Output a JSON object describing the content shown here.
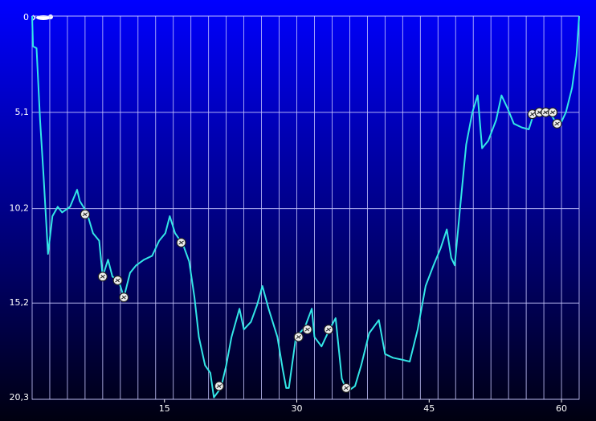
{
  "chart_data": {
    "type": "line",
    "xlim": [
      0,
      62
    ],
    "ylim": [
      0,
      20.3
    ],
    "y_inverted": true,
    "xticks": [
      15,
      30,
      45,
      60
    ],
    "yticks": [
      0,
      {
        "value": 5.1,
        "label": "5,1"
      },
      {
        "value": 10.2,
        "label": "10,2"
      },
      {
        "value": 15.2,
        "label": "15,2"
      },
      {
        "value": 20.3,
        "label": "20,3"
      }
    ],
    "x_grid": [
      2,
      4,
      6,
      8,
      10,
      12,
      14,
      16,
      18,
      20,
      22,
      24,
      26,
      28,
      30,
      32,
      34,
      36,
      38,
      40,
      42,
      44,
      46,
      48,
      50,
      52,
      54,
      56,
      58,
      60
    ],
    "grid": true,
    "series": [
      {
        "color": "#33e6e6",
        "x": [
          0,
          0.1,
          0.5,
          0.9,
          1.3,
          1.8,
          2.3,
          2.9,
          3.4,
          4.3,
          5.1,
          5.4,
          6.2,
          6.9,
          7.6,
          8.0,
          8.6,
          9.1,
          9.8,
          10.4,
          11.1,
          11.8,
          12.7,
          13.6,
          14.4,
          15.1,
          15.6,
          16.2,
          17.1,
          17.8,
          18.4,
          18.9,
          19.6,
          20.2,
          20.6,
          21.4,
          22.0,
          22.6,
          23.5,
          24.0,
          24.8,
          25.5,
          26.1,
          26.8,
          27.8,
          28.4,
          28.8,
          29.1,
          29.9,
          30.9,
          31.7,
          32.0,
          32.8,
          33.7,
          34.4,
          35.1,
          35.7,
          36.6,
          37.3,
          38.2,
          39.3,
          40.0,
          40.9,
          41.9,
          42.8,
          43.7,
          44.6,
          45.5,
          46.3,
          47.0,
          47.5,
          47.9,
          48.5,
          49.2,
          49.9,
          50.5,
          51.0,
          51.7,
          52.6,
          53.2,
          53.9,
          54.6,
          55.5,
          56.3,
          56.9,
          58.3,
          59.2,
          59.9,
          60.5,
          61.2,
          61.7,
          62.0
        ],
        "values": [
          0,
          1.6,
          1.7,
          5.5,
          8.5,
          12.6,
          10.6,
          10.1,
          10.4,
          10.1,
          9.2,
          9.8,
          10.4,
          11.5,
          11.9,
          13.8,
          12.9,
          13.8,
          14.0,
          14.9,
          13.6,
          13.2,
          12.9,
          12.7,
          11.9,
          11.5,
          10.6,
          11.5,
          12.1,
          13.0,
          14.9,
          17.0,
          18.5,
          18.9,
          20.2,
          19.7,
          18.5,
          17.0,
          15.5,
          16.6,
          16.2,
          15.3,
          14.3,
          15.5,
          17.0,
          18.7,
          19.7,
          19.7,
          17.0,
          16.5,
          15.5,
          17.0,
          17.5,
          16.6,
          16.0,
          19.2,
          19.9,
          19.6,
          18.5,
          16.8,
          16.1,
          17.9,
          18.1,
          18.2,
          18.3,
          16.6,
          14.3,
          13.2,
          12.3,
          11.3,
          12.8,
          13.2,
          10.2,
          6.8,
          5.1,
          4.2,
          7.0,
          6.6,
          5.5,
          4.2,
          4.9,
          5.7,
          5.9,
          6.0,
          5.1,
          4.9,
          5.5,
          5.7,
          5.1,
          3.8,
          2.1,
          0
        ]
      }
    ],
    "markers": {
      "x": [
        6.0,
        8.0,
        9.7,
        10.4,
        16.9,
        21.2,
        30.2,
        31.2,
        33.6,
        35.6,
        56.7,
        57.5,
        58.2,
        59.0,
        59.5
      ],
      "y": [
        10.5,
        13.8,
        14.0,
        14.9,
        12.0,
        19.6,
        17.0,
        16.6,
        16.6,
        19.7,
        5.2,
        5.1,
        5.1,
        5.1,
        5.7
      ]
    }
  }
}
